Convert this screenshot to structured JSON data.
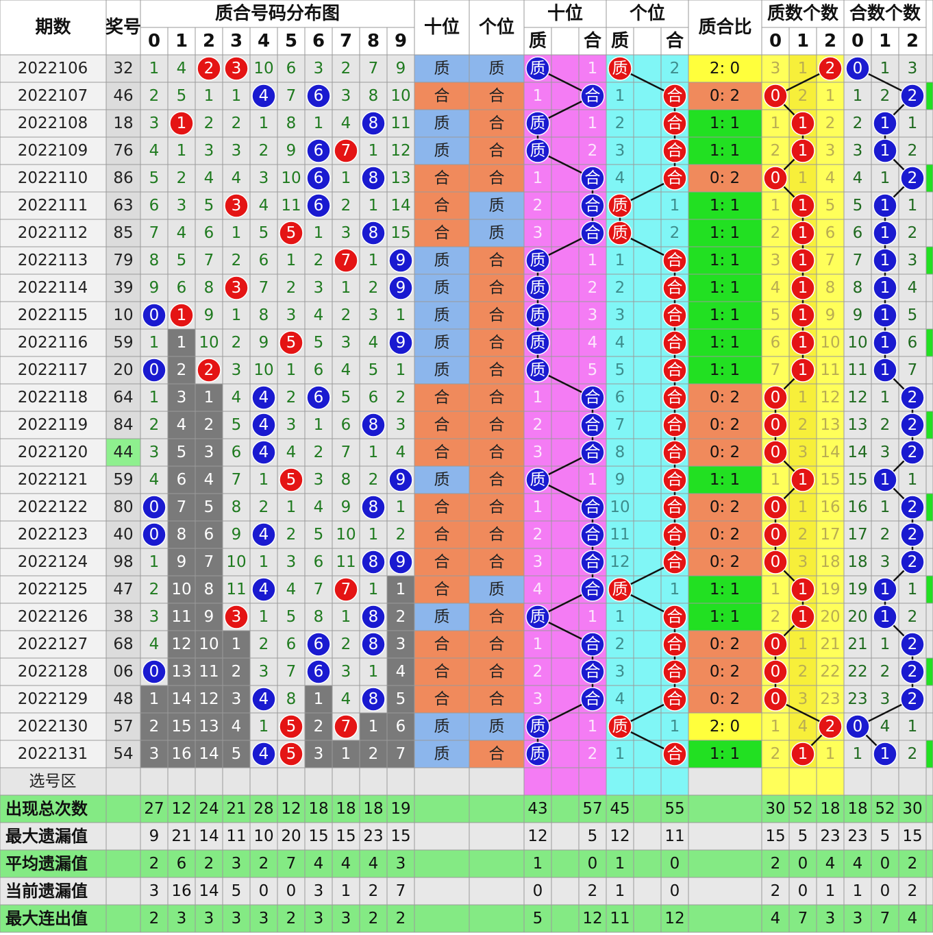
{
  "header": {
    "period": "期数",
    "number": "奖号",
    "dist_title": "质合号码分布图",
    "digits": [
      0,
      1,
      2,
      3,
      4,
      5,
      6,
      7,
      8,
      9
    ],
    "tens": "十位",
    "ones": "个位",
    "tens_zh_title": "十位",
    "tens_zh": [
      "质",
      "合"
    ],
    "ones_zh_title": "个位",
    "ones_zh": [
      "质",
      "合"
    ],
    "ratio": "质合比",
    "prime_count_title": "质数个数",
    "prime_count_heads": [
      0,
      1,
      2
    ],
    "comp_count_title": "合数个数",
    "comp_count_heads": [
      0,
      1,
      2
    ]
  },
  "rows": [
    {
      "period": "2022106",
      "number": "32",
      "dist": [
        1,
        4,
        2,
        3,
        10,
        6,
        3,
        2,
        7,
        9
      ],
      "tens": "质",
      "ones": "质",
      "tens_zh": [
        "质",
        1
      ],
      "ones_zh": [
        "质",
        2
      ],
      "ratio": "2: 0",
      "prime_count": [
        3,
        1,
        2
      ],
      "comp_count": [
        0,
        1,
        3
      ]
    },
    {
      "period": "2022107",
      "number": "46",
      "dist": [
        2,
        5,
        1,
        1,
        4,
        7,
        6,
        3,
        8,
        10
      ],
      "tens": "合",
      "ones": "合",
      "tens_zh": [
        1,
        "合"
      ],
      "ones_zh": [
        1,
        "合"
      ],
      "ratio": "0: 2",
      "prime_count": [
        0,
        2,
        1
      ],
      "comp_count": [
        1,
        2,
        2
      ]
    },
    {
      "period": "2022108",
      "number": "18",
      "dist": [
        3,
        1,
        2,
        2,
        1,
        8,
        1,
        4,
        8,
        11
      ],
      "tens": "质",
      "ones": "合",
      "tens_zh": [
        "质",
        1
      ],
      "ones_zh": [
        2,
        "合"
      ],
      "ratio": "1: 1",
      "prime_count": [
        1,
        1,
        2
      ],
      "comp_count": [
        2,
        1,
        1
      ]
    },
    {
      "period": "2022109",
      "number": "76",
      "dist": [
        4,
        1,
        3,
        3,
        2,
        9,
        6,
        7,
        1,
        12
      ],
      "tens": "质",
      "ones": "合",
      "tens_zh": [
        "质",
        2
      ],
      "ones_zh": [
        3,
        "合"
      ],
      "ratio": "1: 1",
      "prime_count": [
        2,
        1,
        3
      ],
      "comp_count": [
        3,
        1,
        2
      ]
    },
    {
      "period": "2022110",
      "number": "86",
      "dist": [
        5,
        2,
        4,
        4,
        3,
        10,
        6,
        1,
        8,
        13
      ],
      "tens": "合",
      "ones": "合",
      "tens_zh": [
        1,
        "合"
      ],
      "ones_zh": [
        4,
        "合"
      ],
      "ratio": "0: 2",
      "prime_count": [
        0,
        1,
        4
      ],
      "comp_count": [
        4,
        1,
        2
      ]
    },
    {
      "period": "2022111",
      "number": "63",
      "dist": [
        6,
        3,
        5,
        3,
        4,
        11,
        6,
        2,
        1,
        14
      ],
      "tens": "合",
      "ones": "质",
      "tens_zh": [
        2,
        "合"
      ],
      "ones_zh": [
        "质",
        1
      ],
      "ratio": "1: 1",
      "prime_count": [
        1,
        1,
        5
      ],
      "comp_count": [
        5,
        1,
        1
      ]
    },
    {
      "period": "2022112",
      "number": "85",
      "dist": [
        7,
        4,
        6,
        1,
        5,
        5,
        1,
        3,
        8,
        15
      ],
      "tens": "合",
      "ones": "质",
      "tens_zh": [
        3,
        "合"
      ],
      "ones_zh": [
        "质",
        2
      ],
      "ratio": "1: 1",
      "prime_count": [
        2,
        1,
        6
      ],
      "comp_count": [
        6,
        1,
        2
      ]
    },
    {
      "period": "2022113",
      "number": "79",
      "dist": [
        8,
        5,
        7,
        2,
        6,
        1,
        2,
        7,
        1,
        9
      ],
      "tens": "质",
      "ones": "合",
      "tens_zh": [
        "质",
        1
      ],
      "ones_zh": [
        1,
        "合"
      ],
      "ratio": "1: 1",
      "prime_count": [
        3,
        1,
        7
      ],
      "comp_count": [
        7,
        1,
        3
      ]
    },
    {
      "period": "2022114",
      "number": "39",
      "dist": [
        9,
        6,
        8,
        3,
        7,
        2,
        3,
        1,
        2,
        9
      ],
      "tens": "质",
      "ones": "合",
      "tens_zh": [
        "质",
        2
      ],
      "ones_zh": [
        2,
        "合"
      ],
      "ratio": "1: 1",
      "prime_count": [
        4,
        1,
        8
      ],
      "comp_count": [
        8,
        1,
        4
      ]
    },
    {
      "period": "2022115",
      "number": "10",
      "dist": [
        0,
        1,
        9,
        1,
        8,
        3,
        4,
        2,
        3,
        1
      ],
      "tens": "质",
      "ones": "合",
      "tens_zh": [
        "质",
        3
      ],
      "ones_zh": [
        3,
        "合"
      ],
      "ratio": "1: 1",
      "prime_count": [
        5,
        1,
        9
      ],
      "comp_count": [
        9,
        1,
        5
      ]
    },
    {
      "period": "2022116",
      "number": "59",
      "dist": [
        1,
        1,
        10,
        2,
        9,
        5,
        5,
        3,
        4,
        9
      ],
      "tens": "质",
      "ones": "合",
      "tens_zh": [
        "质",
        4
      ],
      "ones_zh": [
        4,
        "合"
      ],
      "ratio": "1: 1",
      "prime_count": [
        6,
        1,
        10
      ],
      "comp_count": [
        10,
        1,
        6
      ]
    },
    {
      "period": "2022117",
      "number": "20",
      "dist": [
        0,
        2,
        2,
        3,
        10,
        1,
        6,
        4,
        5,
        1
      ],
      "tens": "质",
      "ones": "合",
      "tens_zh": [
        "质",
        5
      ],
      "ones_zh": [
        5,
        "合"
      ],
      "ratio": "1: 1",
      "prime_count": [
        7,
        1,
        11
      ],
      "comp_count": [
        11,
        1,
        7
      ]
    },
    {
      "period": "2022118",
      "number": "64",
      "dist": [
        1,
        3,
        1,
        4,
        4,
        2,
        6,
        5,
        6,
        2
      ],
      "tens": "合",
      "ones": "合",
      "tens_zh": [
        1,
        "合"
      ],
      "ones_zh": [
        6,
        "合"
      ],
      "ratio": "0: 2",
      "prime_count": [
        0,
        1,
        12
      ],
      "comp_count": [
        12,
        1,
        2
      ]
    },
    {
      "period": "2022119",
      "number": "84",
      "dist": [
        2,
        4,
        2,
        5,
        4,
        3,
        1,
        6,
        8,
        3
      ],
      "tens": "合",
      "ones": "合",
      "tens_zh": [
        2,
        "合"
      ],
      "ones_zh": [
        7,
        "合"
      ],
      "ratio": "0: 2",
      "prime_count": [
        0,
        2,
        13
      ],
      "comp_count": [
        13,
        2,
        2
      ]
    },
    {
      "period": "2022120",
      "number": "44",
      "dist": [
        3,
        5,
        3,
        6,
        4,
        4,
        2,
        7,
        1,
        4
      ],
      "tens": "合",
      "ones": "合",
      "tens_zh": [
        3,
        "合"
      ],
      "ones_zh": [
        8,
        "合"
      ],
      "ratio": "0: 2",
      "prime_count": [
        0,
        3,
        14
      ],
      "comp_count": [
        14,
        3,
        2
      ]
    },
    {
      "period": "2022121",
      "number": "59",
      "dist": [
        4,
        6,
        4,
        7,
        1,
        5,
        3,
        8,
        2,
        9
      ],
      "tens": "质",
      "ones": "合",
      "tens_zh": [
        "质",
        1
      ],
      "ones_zh": [
        9,
        "合"
      ],
      "ratio": "1: 1",
      "prime_count": [
        1,
        1,
        15
      ],
      "comp_count": [
        15,
        1,
        1
      ]
    },
    {
      "period": "2022122",
      "number": "80",
      "dist": [
        0,
        7,
        5,
        8,
        2,
        1,
        4,
        9,
        8,
        1
      ],
      "tens": "合",
      "ones": "合",
      "tens_zh": [
        1,
        "合"
      ],
      "ones_zh": [
        10,
        "合"
      ],
      "ratio": "0: 2",
      "prime_count": [
        0,
        1,
        16
      ],
      "comp_count": [
        16,
        1,
        2
      ]
    },
    {
      "period": "2022123",
      "number": "40",
      "dist": [
        0,
        8,
        6,
        9,
        4,
        2,
        5,
        10,
        1,
        2
      ],
      "tens": "合",
      "ones": "合",
      "tens_zh": [
        2,
        "合"
      ],
      "ones_zh": [
        11,
        "合"
      ],
      "ratio": "0: 2",
      "prime_count": [
        0,
        2,
        17
      ],
      "comp_count": [
        17,
        2,
        2
      ]
    },
    {
      "period": "2022124",
      "number": "98",
      "dist": [
        1,
        9,
        7,
        10,
        1,
        3,
        6,
        11,
        8,
        9
      ],
      "tens": "合",
      "ones": "合",
      "tens_zh": [
        3,
        "合"
      ],
      "ones_zh": [
        12,
        "合"
      ],
      "ratio": "0: 2",
      "prime_count": [
        0,
        3,
        18
      ],
      "comp_count": [
        18,
        3,
        2
      ]
    },
    {
      "period": "2022125",
      "number": "47",
      "dist": [
        2,
        10,
        8,
        11,
        4,
        4,
        7,
        7,
        1,
        1
      ],
      "tens": "合",
      "ones": "质",
      "tens_zh": [
        4,
        "合"
      ],
      "ones_zh": [
        "质",
        1
      ],
      "ratio": "1: 1",
      "prime_count": [
        1,
        1,
        19
      ],
      "comp_count": [
        19,
        1,
        1
      ]
    },
    {
      "period": "2022126",
      "number": "38",
      "dist": [
        3,
        11,
        9,
        3,
        1,
        5,
        8,
        1,
        8,
        2
      ],
      "tens": "质",
      "ones": "合",
      "tens_zh": [
        "质",
        1
      ],
      "ones_zh": [
        1,
        "合"
      ],
      "ratio": "1: 1",
      "prime_count": [
        2,
        1,
        20
      ],
      "comp_count": [
        20,
        1,
        2
      ]
    },
    {
      "period": "2022127",
      "number": "68",
      "dist": [
        4,
        12,
        10,
        1,
        2,
        6,
        6,
        2,
        8,
        3
      ],
      "tens": "合",
      "ones": "合",
      "tens_zh": [
        1,
        "合"
      ],
      "ones_zh": [
        2,
        "合"
      ],
      "ratio": "0: 2",
      "prime_count": [
        0,
        1,
        21
      ],
      "comp_count": [
        21,
        1,
        2
      ]
    },
    {
      "period": "2022128",
      "number": "06",
      "dist": [
        0,
        13,
        11,
        2,
        3,
        7,
        6,
        3,
        1,
        4
      ],
      "tens": "合",
      "ones": "合",
      "tens_zh": [
        2,
        "合"
      ],
      "ones_zh": [
        3,
        "合"
      ],
      "ratio": "0: 2",
      "prime_count": [
        0,
        2,
        22
      ],
      "comp_count": [
        22,
        2,
        2
      ]
    },
    {
      "period": "2022129",
      "number": "48",
      "dist": [
        1,
        14,
        12,
        3,
        4,
        8,
        1,
        4,
        8,
        5
      ],
      "tens": "合",
      "ones": "合",
      "tens_zh": [
        3,
        "合"
      ],
      "ones_zh": [
        4,
        "合"
      ],
      "ratio": "0: 2",
      "prime_count": [
        0,
        3,
        23
      ],
      "comp_count": [
        23,
        3,
        2
      ]
    },
    {
      "period": "2022130",
      "number": "57",
      "dist": [
        2,
        15,
        13,
        4,
        1,
        5,
        2,
        7,
        1,
        6
      ],
      "tens": "质",
      "ones": "质",
      "tens_zh": [
        "质",
        1
      ],
      "ones_zh": [
        "质",
        1
      ],
      "ratio": "2: 0",
      "prime_count": [
        1,
        4,
        2
      ],
      "comp_count": [
        0,
        4,
        1
      ]
    },
    {
      "period": "2022131",
      "number": "54",
      "dist": [
        3,
        16,
        14,
        5,
        4,
        5,
        3,
        1,
        2,
        7
      ],
      "tens": "质",
      "ones": "合",
      "tens_zh": [
        "质",
        2
      ],
      "ones_zh": [
        1,
        "合"
      ],
      "ratio": "1: 1",
      "prime_count": [
        2,
        1,
        1
      ],
      "comp_count": [
        1,
        1,
        2
      ]
    }
  ],
  "select_label": "选号区",
  "stats": [
    {
      "label": "出现总次数",
      "dist": [
        27,
        12,
        24,
        21,
        28,
        12,
        18,
        18,
        18,
        19
      ],
      "tens_zh": [
        43,
        57
      ],
      "ones_zh": [
        45,
        55
      ],
      "prime_count": [
        30,
        52,
        18
      ],
      "comp_count": [
        18,
        52,
        30
      ]
    },
    {
      "label": "最大遗漏值",
      "dist": [
        9,
        21,
        14,
        11,
        10,
        20,
        15,
        15,
        23,
        15
      ],
      "tens_zh": [
        12,
        5
      ],
      "ones_zh": [
        12,
        11
      ],
      "prime_count": [
        15,
        5,
        23
      ],
      "comp_count": [
        23,
        5,
        15
      ]
    },
    {
      "label": "平均遗漏值",
      "dist": [
        2,
        6,
        2,
        3,
        2,
        7,
        4,
        4,
        4,
        3
      ],
      "tens_zh": [
        1,
        0
      ],
      "ones_zh": [
        1,
        0
      ],
      "prime_count": [
        2,
        0,
        4
      ],
      "comp_count": [
        4,
        0,
        2
      ]
    },
    {
      "label": "当前遗漏值",
      "dist": [
        3,
        16,
        14,
        5,
        0,
        0,
        3,
        1,
        2,
        7
      ],
      "tens_zh": [
        0,
        2
      ],
      "ones_zh": [
        1,
        0
      ],
      "prime_count": [
        2,
        0,
        1
      ],
      "comp_count": [
        1,
        0,
        2
      ]
    },
    {
      "label": "最大连出值",
      "dist": [
        2,
        3,
        3,
        3,
        3,
        2,
        3,
        3,
        2,
        2
      ],
      "tens_zh": [
        5,
        12
      ],
      "ones_zh": [
        11,
        12
      ],
      "prime_count": [
        4,
        7,
        3
      ],
      "comp_count": [
        3,
        7,
        4
      ]
    }
  ]
}
